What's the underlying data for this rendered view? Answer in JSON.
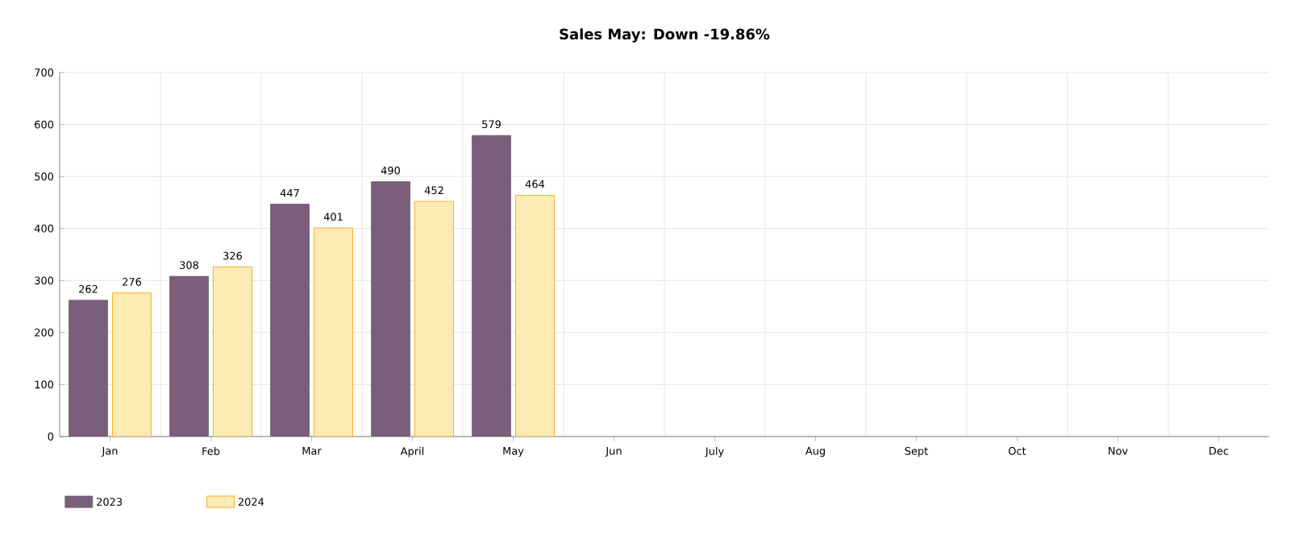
{
  "chart_data": {
    "type": "bar",
    "title": "Sales May: Down -19.86%",
    "categories": [
      "Jan",
      "Feb",
      "Mar",
      "April",
      "May",
      "Jun",
      "July",
      "Aug",
      "Sept",
      "Oct",
      "Nov",
      "Dec"
    ],
    "series": [
      {
        "name": "2023",
        "color": "#7b5e7b",
        "values": [
          262,
          308,
          447,
          490,
          579,
          null,
          null,
          null,
          null,
          null,
          null,
          null
        ]
      },
      {
        "name": "2024",
        "color": "#fcecb4",
        "values": [
          276,
          326,
          401,
          452,
          464,
          null,
          null,
          null,
          null,
          null,
          null,
          null
        ]
      }
    ],
    "ylim": [
      0,
      700
    ],
    "yticks": [
      0,
      100,
      200,
      300,
      400,
      500,
      600,
      700
    ],
    "grid": true,
    "legend": "bottom left",
    "data_labels": true
  }
}
